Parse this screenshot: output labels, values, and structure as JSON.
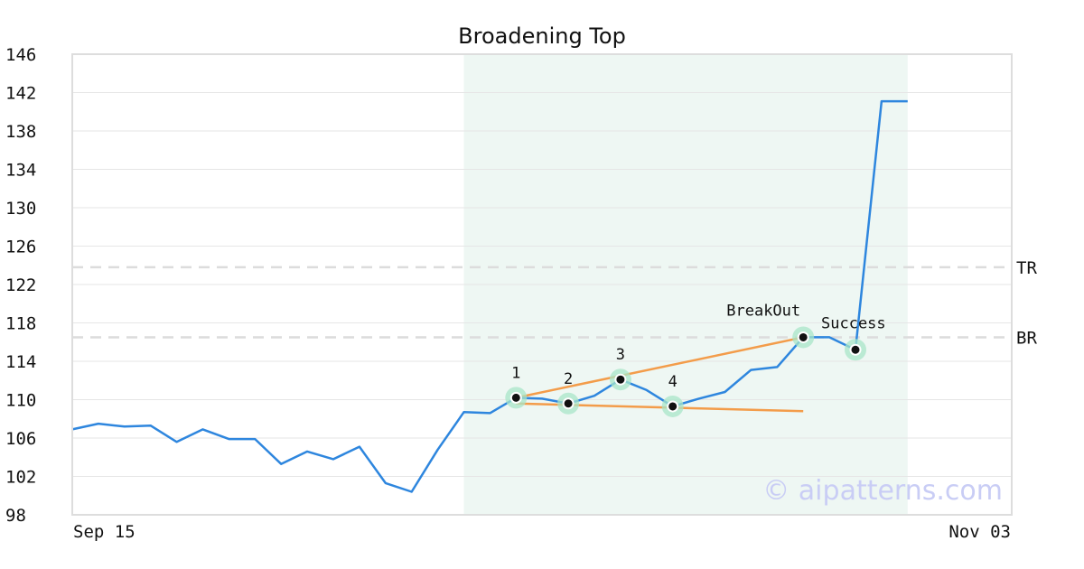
{
  "chart_data": {
    "type": "line",
    "title": "Broadening Top",
    "ylim": [
      98,
      146
    ],
    "y_ticks": [
      98,
      102,
      106,
      110,
      114,
      118,
      122,
      126,
      130,
      134,
      138,
      142,
      146
    ],
    "x_tick_labels": [
      "Sep 15",
      "Nov 03"
    ],
    "grid": "horizontal",
    "series": [
      {
        "color": "#2e86de",
        "values": [
          106.9,
          107.5,
          107.2,
          107.3,
          105.6,
          106.9,
          105.9,
          105.9,
          103.3,
          104.6,
          103.8,
          105.1,
          101.3,
          100.4,
          104.8,
          108.7,
          108.6,
          110.2,
          110.1,
          109.6,
          110.4,
          112.1,
          111.0,
          109.3,
          110.1,
          110.8,
          113.1,
          113.4,
          116.5,
          116.5,
          115.2,
          141.1,
          141.1
        ]
      }
    ],
    "highlight_range": {
      "start_index": 15,
      "end_index": 32,
      "color": "#eef7f3"
    },
    "reference_lines": [
      {
        "label": "TR",
        "value": 123.8
      },
      {
        "label": "BR",
        "value": 116.5
      }
    ],
    "trend_lines": [
      {
        "color": "#f39c4a",
        "from": {
          "index": 17,
          "value": 110.2
        },
        "to": {
          "index": 28,
          "value": 116.5
        }
      },
      {
        "color": "#f39c4a",
        "from": {
          "index": 17,
          "value": 109.6
        },
        "to": {
          "index": 28,
          "value": 108.8
        }
      }
    ],
    "annotations": [
      {
        "label": "1",
        "index": 17,
        "value": 110.2
      },
      {
        "label": "2",
        "index": 19,
        "value": 109.6
      },
      {
        "label": "3",
        "index": 21,
        "value": 112.1
      },
      {
        "label": "4",
        "index": 23,
        "value": 109.3
      },
      {
        "label": "BreakOut",
        "index": 28,
        "value": 116.5
      },
      {
        "label": "Success",
        "index": 30,
        "value": 115.2
      }
    ],
    "watermark": "© aipatterns.com"
  }
}
